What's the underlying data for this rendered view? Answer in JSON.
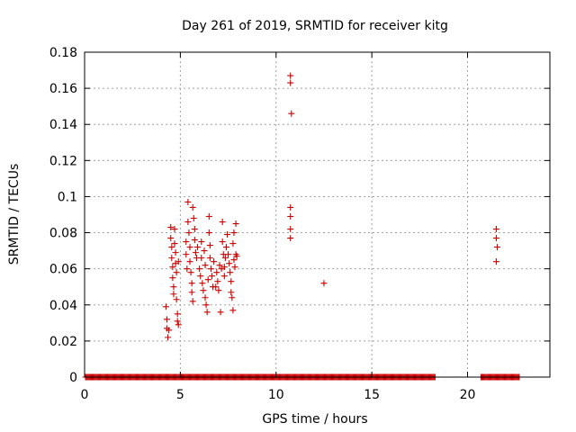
{
  "chart_data": {
    "type": "scatter",
    "title": "Day 261 of 2019, SRMTID for receiver kitg",
    "xlabel": "GPS time / hours",
    "ylabel": "SRMTID / TECUs",
    "xlim": [
      0,
      24.3
    ],
    "ylim": [
      0,
      0.18
    ],
    "xticks": [
      0,
      5,
      10,
      15,
      20
    ],
    "xtick_labels": [
      "0",
      "5",
      "10",
      "15",
      "20"
    ],
    "yticks": [
      0,
      0.02,
      0.04,
      0.06,
      0.08,
      0.1,
      0.12,
      0.14,
      0.16,
      0.18
    ],
    "ytick_labels": [
      "0",
      "0.02",
      "0.04",
      "0.06",
      "0.08",
      "0.1",
      "0.12",
      "0.14",
      "0.16",
      "0.18"
    ],
    "grid": true,
    "marker": "plus",
    "color": "#cc0000",
    "series": [
      {
        "zero_ranges": [
          [
            0.05,
            18.3
          ],
          [
            20.7,
            22.7
          ]
        ],
        "zero_step": 0.05,
        "points": [
          [
            4.25,
            0.039
          ],
          [
            4.3,
            0.032
          ],
          [
            4.3,
            0.027
          ],
          [
            4.35,
            0.022
          ],
          [
            4.4,
            0.026
          ],
          [
            4.5,
            0.083
          ],
          [
            4.5,
            0.077
          ],
          [
            4.55,
            0.072
          ],
          [
            4.55,
            0.066
          ],
          [
            4.6,
            0.061
          ],
          [
            4.6,
            0.055
          ],
          [
            4.65,
            0.05
          ],
          [
            4.65,
            0.046
          ],
          [
            4.7,
            0.082
          ],
          [
            4.7,
            0.074
          ],
          [
            4.75,
            0.069
          ],
          [
            4.75,
            0.063
          ],
          [
            4.8,
            0.058
          ],
          [
            4.8,
            0.043
          ],
          [
            4.85,
            0.035
          ],
          [
            4.85,
            0.031
          ],
          [
            4.9,
            0.029
          ],
          [
            4.9,
            0.064
          ],
          [
            5.3,
            0.075
          ],
          [
            5.3,
            0.068
          ],
          [
            5.35,
            0.06
          ],
          [
            5.4,
            0.097
          ],
          [
            5.4,
            0.086
          ],
          [
            5.45,
            0.08
          ],
          [
            5.5,
            0.072
          ],
          [
            5.5,
            0.064
          ],
          [
            5.55,
            0.058
          ],
          [
            5.6,
            0.052
          ],
          [
            5.6,
            0.047
          ],
          [
            5.65,
            0.042
          ],
          [
            5.65,
            0.094
          ],
          [
            5.7,
            0.088
          ],
          [
            5.75,
            0.082
          ],
          [
            5.75,
            0.076
          ],
          [
            5.8,
            0.069
          ],
          [
            5.85,
            0.066
          ],
          [
            5.9,
            0.072
          ],
          [
            6.0,
            0.06
          ],
          [
            6.05,
            0.056
          ],
          [
            6.1,
            0.075
          ],
          [
            6.1,
            0.066
          ],
          [
            6.15,
            0.052
          ],
          [
            6.2,
            0.048
          ],
          [
            6.25,
            0.07
          ],
          [
            6.3,
            0.062
          ],
          [
            6.3,
            0.044
          ],
          [
            6.35,
            0.04
          ],
          [
            6.4,
            0.036
          ],
          [
            6.45,
            0.054
          ],
          [
            6.5,
            0.089
          ],
          [
            6.5,
            0.08
          ],
          [
            6.55,
            0.073
          ],
          [
            6.55,
            0.066
          ],
          [
            6.6,
            0.06
          ],
          [
            6.65,
            0.056
          ],
          [
            6.7,
            0.05
          ],
          [
            6.75,
            0.064
          ],
          [
            6.85,
            0.05
          ],
          [
            6.9,
            0.058
          ],
          [
            6.95,
            0.053
          ],
          [
            7.0,
            0.048
          ],
          [
            7.05,
            0.062
          ],
          [
            7.1,
            0.036
          ],
          [
            7.15,
            0.06
          ],
          [
            7.2,
            0.086
          ],
          [
            7.2,
            0.075
          ],
          [
            7.25,
            0.068
          ],
          [
            7.3,
            0.061
          ],
          [
            7.3,
            0.056
          ],
          [
            7.35,
            0.066
          ],
          [
            7.4,
            0.072
          ],
          [
            7.45,
            0.079
          ],
          [
            7.5,
            0.068
          ],
          [
            7.55,
            0.063
          ],
          [
            7.6,
            0.058
          ],
          [
            7.65,
            0.053
          ],
          [
            7.65,
            0.047
          ],
          [
            7.7,
            0.044
          ],
          [
            7.75,
            0.037
          ],
          [
            7.75,
            0.074
          ],
          [
            7.8,
            0.08
          ],
          [
            7.8,
            0.065
          ],
          [
            7.85,
            0.061
          ],
          [
            7.9,
            0.068
          ],
          [
            7.9,
            0.085
          ],
          [
            7.95,
            0.067
          ],
          [
            10.75,
            0.167
          ],
          [
            10.75,
            0.163
          ],
          [
            10.8,
            0.146
          ],
          [
            10.75,
            0.094
          ],
          [
            10.75,
            0.089
          ],
          [
            10.75,
            0.082
          ],
          [
            10.75,
            0.077
          ],
          [
            12.5,
            0.052
          ],
          [
            21.5,
            0.082
          ],
          [
            21.5,
            0.077
          ],
          [
            21.55,
            0.072
          ],
          [
            21.5,
            0.064
          ]
        ]
      }
    ]
  }
}
